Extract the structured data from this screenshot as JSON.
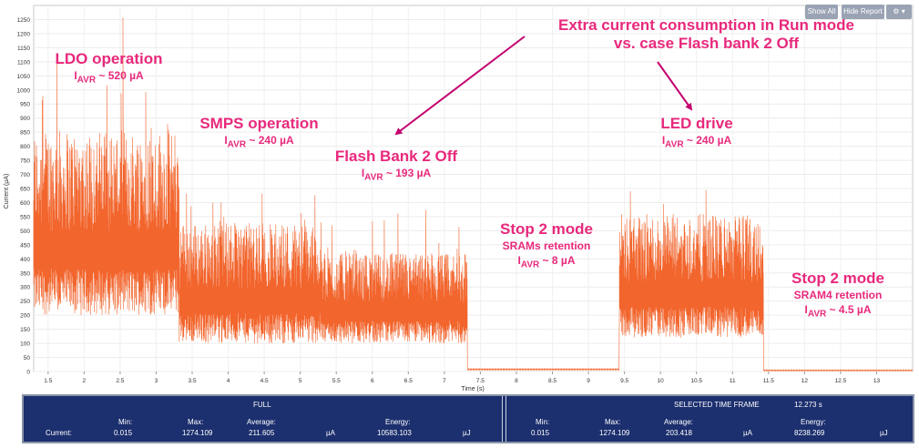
{
  "toolbar": {
    "show_all": "Show All",
    "hide_report": "Hide Report",
    "settings_icon": "gear-icon"
  },
  "chart_data": {
    "type": "line",
    "xlabel": "Time (s)",
    "ylabel": "Current (µA)",
    "xlim": [
      1.3,
      13.5
    ],
    "ylim": [
      0,
      1300
    ],
    "x_ticks": [
      "1.5",
      "2",
      "2.5",
      "3",
      "3.5",
      "4",
      "4.5",
      "5",
      "5.5",
      "6",
      "6.5",
      "7",
      "7.5",
      "8",
      "8.5",
      "9",
      "9.5",
      "10",
      "10.5",
      "11",
      "11.5",
      "12",
      "12.5",
      "13"
    ],
    "y_ticks": [
      "0",
      "50",
      "100",
      "150",
      "200",
      "250",
      "300",
      "350",
      "400",
      "450",
      "500",
      "550",
      "600",
      "650",
      "700",
      "750",
      "800",
      "850",
      "900",
      "950",
      "1000",
      "1050",
      "1100",
      "1150",
      "1200",
      "1250"
    ],
    "grid": true,
    "line_color": "#f2652d",
    "segments": [
      {
        "x_start": 1.3,
        "x_end": 3.32,
        "low": 200,
        "high": 860,
        "spike_max": 1274,
        "avg": 520
      },
      {
        "x_start": 3.32,
        "x_end": 5.3,
        "low": 100,
        "high": 530,
        "spike_max": 640,
        "avg": 240
      },
      {
        "x_start": 5.3,
        "x_end": 7.32,
        "low": 100,
        "high": 420,
        "spike_max": 580,
        "avg": 193
      },
      {
        "x_start": 7.32,
        "x_end": 9.43,
        "low": 5,
        "high": 10,
        "spike_max": 15,
        "avg": 8
      },
      {
        "x_start": 9.43,
        "x_end": 11.43,
        "low": 120,
        "high": 560,
        "spike_max": 725,
        "avg": 240
      },
      {
        "x_start": 11.43,
        "x_end": 13.5,
        "low": 2,
        "high": 6,
        "spike_max": 10,
        "avg": 4.5
      }
    ],
    "annotations": [
      {
        "title": "LDO operation",
        "sub": "I<sub>AVR</sub> ~ 520 µA"
      },
      {
        "title": "SMPS operation",
        "sub": "I<sub>AVR</sub> ~ 240 µA"
      },
      {
        "title": "Flash Bank 2 Off",
        "sub": "I<sub>AVR</sub> ~ 193 µA"
      },
      {
        "title": "Stop 2 mode",
        "sub": "SRAMs retention",
        "sub2": "I<sub>AVR</sub> ~ 8 µA"
      },
      {
        "title": "LED drive",
        "sub": "I<sub>AVR</sub> ~ 240 µA"
      },
      {
        "title": "Stop 2 mode",
        "sub": "SRAM4 retention",
        "sub2": "I<sub>AVR</sub> ~ 4.5 µA"
      }
    ],
    "callout": {
      "line1": "Extra current consumption in Run mode",
      "line2": "vs. case Flash bank 2 Off"
    }
  },
  "report": {
    "full_label": "FULL",
    "selected_label": "SELECTED TIME FRAME",
    "selected_value": "12.273 s",
    "row_label": "Current:",
    "headers": {
      "min": "Min:",
      "max": "Max:",
      "average": "Average:",
      "energy": "Energy:"
    },
    "full": {
      "min": "0.015",
      "max": "1274.109",
      "average": "211.605",
      "avg_unit": "µA",
      "energy": "10583.103",
      "energy_unit": "µJ"
    },
    "selected": {
      "min": "0.015",
      "max": "1274.109",
      "average": "203.418",
      "avg_unit": "µA",
      "energy": "8238.269",
      "energy_unit": "µJ"
    }
  }
}
